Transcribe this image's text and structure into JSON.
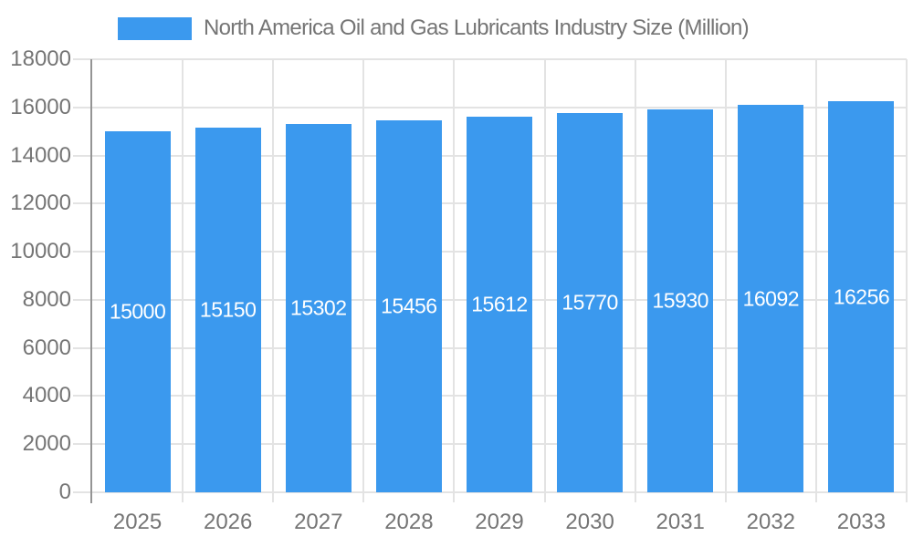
{
  "legend": {
    "label": "North America Oil and Gas Lubricants Industry Size (Million)"
  },
  "chart_data": {
    "type": "bar",
    "title": "North America Oil and Gas Lubricants Industry Size (Million)",
    "series_name": "North America Oil and Gas Lubricants Industry Size (Million)",
    "categories": [
      "2025",
      "2026",
      "2027",
      "2028",
      "2029",
      "2030",
      "2031",
      "2032",
      "2033"
    ],
    "values": [
      15000,
      15150,
      15302,
      15456,
      15612,
      15770,
      15930,
      16092,
      16256
    ],
    "data_labels_shown": true,
    "xlabel": "",
    "ylabel": "",
    "ylim": [
      0,
      18000
    ],
    "yticks": [
      0,
      2000,
      4000,
      6000,
      8000,
      10000,
      12000,
      14000,
      16000,
      18000
    ],
    "grid": true,
    "legend_position": "top",
    "colors": {
      "bar": "#3B99EE",
      "bar_label": "#ffffff",
      "axis_text": "#757575",
      "grid_line": "#e3e3e3",
      "axis_line": "#949494"
    }
  }
}
